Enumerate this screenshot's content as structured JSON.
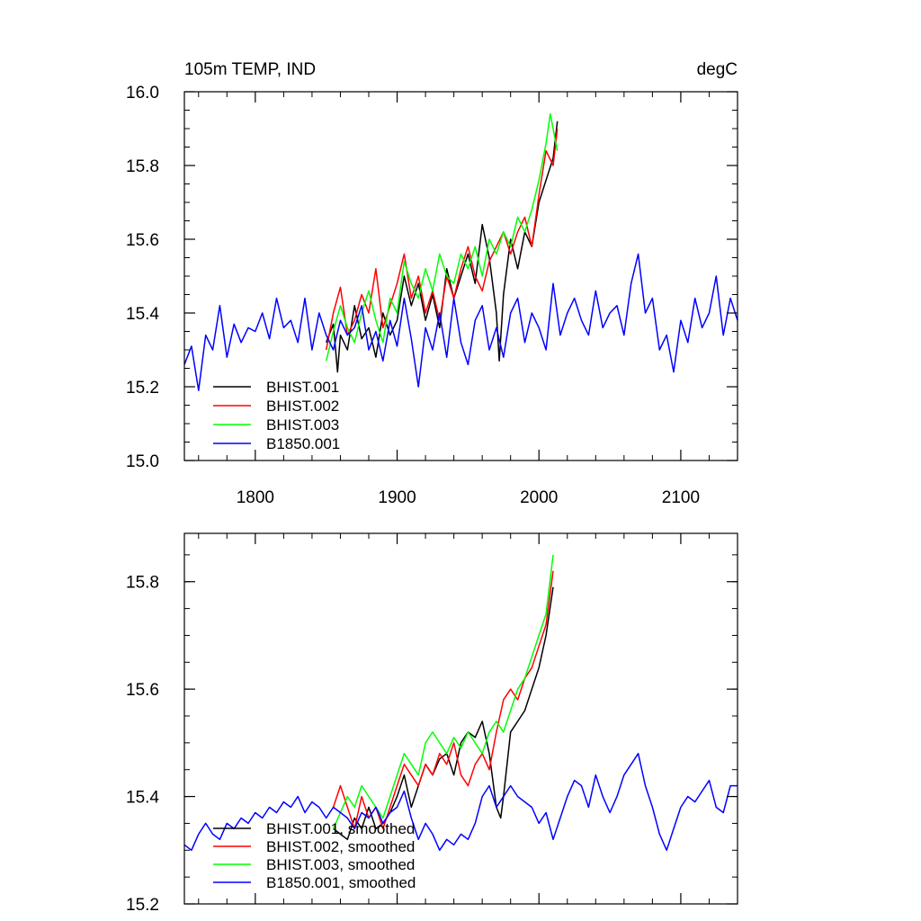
{
  "chart_data": [
    {
      "type": "line",
      "title": "105m TEMP, IND",
      "units": "degC",
      "xlim": [
        1750,
        2140
      ],
      "ylim": [
        15.0,
        16.0
      ],
      "xticks": [
        1800,
        1900,
        2000,
        2100
      ],
      "xtick_labels": [
        "1800",
        "1900",
        "2000",
        "2100"
      ],
      "yticks": [
        15.0,
        15.2,
        15.4,
        15.6,
        15.8,
        16.0
      ],
      "ytick_labels": [
        "15.0",
        "15.2",
        "15.4",
        "15.6",
        "15.8",
        "16.0"
      ],
      "legend_position": "bottom-left",
      "series": [
        {
          "name": "BHIST.001",
          "color": "#000000",
          "x": [
            1850,
            1855,
            1858,
            1860,
            1865,
            1870,
            1875,
            1880,
            1885,
            1890,
            1895,
            1900,
            1905,
            1910,
            1915,
            1920,
            1925,
            1930,
            1935,
            1940,
            1945,
            1950,
            1955,
            1960,
            1965,
            1970,
            1972,
            1975,
            1980,
            1985,
            1990,
            1995,
            2000,
            2005,
            2010,
            2013
          ],
          "y": [
            15.32,
            15.37,
            15.24,
            15.34,
            15.3,
            15.42,
            15.33,
            15.36,
            15.28,
            15.4,
            15.34,
            15.38,
            15.5,
            15.42,
            15.48,
            15.38,
            15.45,
            15.36,
            15.52,
            15.44,
            15.5,
            15.56,
            15.48,
            15.64,
            15.55,
            15.4,
            15.27,
            15.45,
            15.6,
            15.52,
            15.62,
            15.58,
            15.7,
            15.76,
            15.82,
            15.92
          ]
        },
        {
          "name": "BHIST.002",
          "color": "#ff0000",
          "x": [
            1850,
            1855,
            1860,
            1865,
            1870,
            1875,
            1880,
            1885,
            1890,
            1895,
            1900,
            1905,
            1910,
            1915,
            1920,
            1925,
            1930,
            1935,
            1940,
            1945,
            1950,
            1955,
            1960,
            1965,
            1970,
            1975,
            1980,
            1985,
            1990,
            1995,
            2000,
            2005,
            2010,
            2013
          ],
          "y": [
            15.3,
            15.4,
            15.47,
            15.34,
            15.38,
            15.45,
            15.4,
            15.52,
            15.36,
            15.42,
            15.48,
            15.56,
            15.44,
            15.5,
            15.4,
            15.46,
            15.38,
            15.5,
            15.44,
            15.52,
            15.58,
            15.5,
            15.46,
            15.54,
            15.58,
            15.62,
            15.56,
            15.62,
            15.66,
            15.58,
            15.72,
            15.84,
            15.8,
            15.9
          ]
        },
        {
          "name": "BHIST.003",
          "color": "#00ff00",
          "x": [
            1850,
            1855,
            1860,
            1865,
            1870,
            1875,
            1880,
            1885,
            1890,
            1895,
            1900,
            1905,
            1910,
            1915,
            1920,
            1925,
            1930,
            1935,
            1940,
            1945,
            1950,
            1955,
            1960,
            1965,
            1970,
            1975,
            1980,
            1985,
            1990,
            1995,
            2000,
            2005,
            2008,
            2013
          ],
          "y": [
            15.27,
            15.35,
            15.42,
            15.36,
            15.32,
            15.4,
            15.46,
            15.38,
            15.32,
            15.44,
            15.4,
            15.54,
            15.48,
            15.44,
            15.52,
            15.46,
            15.56,
            15.5,
            15.48,
            15.56,
            15.52,
            15.58,
            15.5,
            15.6,
            15.56,
            15.62,
            15.58,
            15.66,
            15.62,
            15.68,
            15.76,
            15.86,
            15.94,
            15.84
          ]
        },
        {
          "name": "B1850.001",
          "color": "#0000ff",
          "x": [
            1750,
            1755,
            1760,
            1765,
            1770,
            1775,
            1780,
            1785,
            1790,
            1795,
            1800,
            1805,
            1810,
            1815,
            1820,
            1825,
            1830,
            1835,
            1840,
            1845,
            1850,
            1855,
            1860,
            1865,
            1870,
            1875,
            1880,
            1885,
            1890,
            1895,
            1900,
            1905,
            1910,
            1915,
            1920,
            1925,
            1930,
            1935,
            1940,
            1945,
            1950,
            1955,
            1960,
            1965,
            1970,
            1975,
            1980,
            1985,
            1990,
            1995,
            2000,
            2005,
            2010,
            2015,
            2020,
            2025,
            2030,
            2035,
            2040,
            2045,
            2050,
            2055,
            2060,
            2065,
            2070,
            2075,
            2080,
            2085,
            2090,
            2095,
            2100,
            2105,
            2110,
            2115,
            2120,
            2125,
            2130,
            2135,
            2140
          ],
          "y": [
            15.26,
            15.31,
            15.19,
            15.34,
            15.3,
            15.42,
            15.28,
            15.37,
            15.32,
            15.36,
            15.35,
            15.4,
            15.33,
            15.44,
            15.36,
            15.38,
            15.32,
            15.44,
            15.3,
            15.4,
            15.34,
            15.3,
            15.38,
            15.34,
            15.36,
            15.42,
            15.3,
            15.35,
            15.27,
            15.38,
            15.31,
            15.44,
            15.33,
            15.2,
            15.36,
            15.3,
            15.4,
            15.28,
            15.44,
            15.32,
            15.26,
            15.38,
            15.42,
            15.3,
            15.36,
            15.28,
            15.4,
            15.44,
            15.32,
            15.4,
            15.36,
            15.3,
            15.48,
            15.34,
            15.4,
            15.44,
            15.38,
            15.34,
            15.46,
            15.36,
            15.4,
            15.42,
            15.34,
            15.48,
            15.56,
            15.4,
            15.44,
            15.3,
            15.34,
            15.24,
            15.38,
            15.32,
            15.44,
            15.36,
            15.4,
            15.5,
            15.34,
            15.44,
            15.38
          ]
        }
      ]
    },
    {
      "type": "line",
      "xlim": [
        1750,
        2140
      ],
      "ylim": [
        15.2,
        15.89
      ],
      "xticks": [
        1800,
        1900,
        2000,
        2100
      ],
      "yticks": [
        15.2,
        15.4,
        15.6,
        15.8
      ],
      "ytick_labels": [
        "15.2",
        "15.4",
        "15.6",
        "15.8"
      ],
      "legend_position": "bottom-left",
      "series": [
        {
          "name": "BHIST.001, smoothed",
          "color": "#000000",
          "x": [
            1855,
            1860,
            1865,
            1870,
            1875,
            1880,
            1885,
            1890,
            1895,
            1900,
            1905,
            1910,
            1915,
            1920,
            1925,
            1930,
            1935,
            1940,
            1945,
            1950,
            1955,
            1960,
            1965,
            1970,
            1973,
            1975,
            1980,
            1985,
            1990,
            1995,
            2000,
            2005,
            2010
          ],
          "y": [
            15.34,
            15.33,
            15.32,
            15.36,
            15.34,
            15.38,
            15.34,
            15.35,
            15.37,
            15.4,
            15.44,
            15.38,
            15.42,
            15.46,
            15.44,
            15.47,
            15.48,
            15.44,
            15.5,
            15.52,
            15.51,
            15.54,
            15.48,
            15.38,
            15.36,
            15.4,
            15.52,
            15.54,
            15.56,
            15.6,
            15.64,
            15.7,
            15.79
          ]
        },
        {
          "name": "BHIST.002, smoothed",
          "color": "#ff0000",
          "x": [
            1855,
            1860,
            1865,
            1870,
            1875,
            1880,
            1885,
            1890,
            1895,
            1900,
            1905,
            1910,
            1915,
            1920,
            1925,
            1930,
            1935,
            1940,
            1945,
            1950,
            1955,
            1960,
            1965,
            1970,
            1975,
            1980,
            1985,
            1990,
            1995,
            2000,
            2005,
            2010
          ],
          "y": [
            15.38,
            15.42,
            15.38,
            15.34,
            15.4,
            15.36,
            15.38,
            15.34,
            15.38,
            15.42,
            15.46,
            15.44,
            15.42,
            15.46,
            15.44,
            15.48,
            15.46,
            15.5,
            15.44,
            15.42,
            15.46,
            15.48,
            15.45,
            15.52,
            15.58,
            15.6,
            15.58,
            15.62,
            15.64,
            15.68,
            15.72,
            15.82
          ]
        },
        {
          "name": "BHIST.003, smoothed",
          "color": "#00ff00",
          "x": [
            1855,
            1860,
            1865,
            1870,
            1875,
            1880,
            1885,
            1890,
            1895,
            1900,
            1905,
            1910,
            1915,
            1920,
            1925,
            1930,
            1935,
            1940,
            1945,
            1950,
            1955,
            1960,
            1965,
            1970,
            1975,
            1980,
            1985,
            1990,
            1995,
            2000,
            2005,
            2010
          ],
          "y": [
            15.34,
            15.37,
            15.4,
            15.38,
            15.42,
            15.4,
            15.38,
            15.36,
            15.4,
            15.44,
            15.48,
            15.46,
            15.44,
            15.5,
            15.52,
            15.5,
            15.48,
            15.51,
            15.49,
            15.52,
            15.5,
            15.48,
            15.52,
            15.54,
            15.52,
            15.56,
            15.6,
            15.62,
            15.66,
            15.7,
            15.74,
            15.85
          ]
        },
        {
          "name": "B1850.001, smoothed",
          "color": "#0000ff",
          "x": [
            1750,
            1755,
            1760,
            1765,
            1770,
            1775,
            1780,
            1785,
            1790,
            1795,
            1800,
            1805,
            1810,
            1815,
            1820,
            1825,
            1830,
            1835,
            1840,
            1845,
            1850,
            1855,
            1860,
            1865,
            1870,
            1875,
            1880,
            1885,
            1890,
            1895,
            1900,
            1905,
            1910,
            1915,
            1920,
            1925,
            1930,
            1935,
            1940,
            1945,
            1950,
            1955,
            1960,
            1965,
            1970,
            1975,
            1980,
            1985,
            1990,
            1995,
            2000,
            2005,
            2010,
            2015,
            2020,
            2025,
            2030,
            2035,
            2040,
            2045,
            2050,
            2055,
            2060,
            2065,
            2070,
            2075,
            2080,
            2085,
            2090,
            2095,
            2100,
            2105,
            2110,
            2115,
            2120,
            2125,
            2130,
            2135,
            2140
          ],
          "y": [
            15.31,
            15.3,
            15.33,
            15.35,
            15.33,
            15.32,
            15.35,
            15.34,
            15.36,
            15.35,
            15.37,
            15.36,
            15.38,
            15.37,
            15.39,
            15.38,
            15.4,
            15.37,
            15.39,
            15.38,
            15.36,
            15.38,
            15.37,
            15.36,
            15.34,
            15.37,
            15.36,
            15.38,
            15.35,
            15.37,
            15.38,
            15.41,
            15.36,
            15.32,
            15.35,
            15.33,
            15.3,
            15.32,
            15.31,
            15.33,
            15.32,
            15.35,
            15.4,
            15.42,
            15.38,
            15.4,
            15.42,
            15.4,
            15.39,
            15.38,
            15.35,
            15.37,
            15.32,
            15.36,
            15.4,
            15.43,
            15.42,
            15.38,
            15.44,
            15.4,
            15.37,
            15.4,
            15.44,
            15.46,
            15.48,
            15.42,
            15.38,
            15.33,
            15.3,
            15.34,
            15.38,
            15.4,
            15.39,
            15.41,
            15.43,
            15.38,
            15.37,
            15.42,
            15.42
          ]
        }
      ]
    }
  ]
}
